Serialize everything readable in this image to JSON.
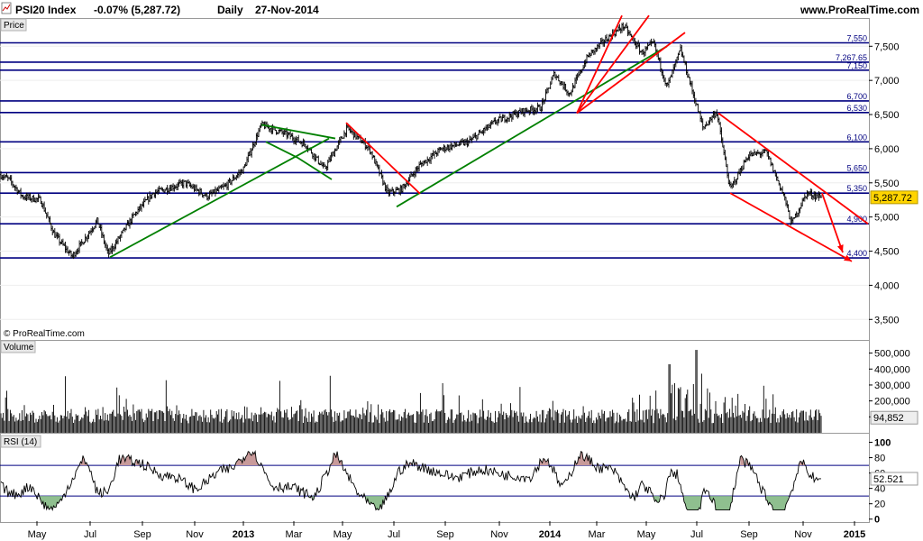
{
  "header": {
    "instrument": "PSI20 Index",
    "change": "-0.07% (5,287.72)",
    "period": "Daily",
    "date": "27-Nov-2014",
    "site": "www.ProRealTime.com",
    "copyright": "© ProRealTime.com"
  },
  "panels": {
    "price": "Price",
    "volume": "Volume",
    "rsi": "RSI (14)"
  },
  "colors": {
    "levels": "#000080",
    "support_trend": "#008000",
    "resistance_trend": "#ff0000",
    "rsi_overbought_fill": "#c89a9a",
    "rsi_oversold_fill": "#8fbf8f",
    "last_price_tag": "#ffd400"
  },
  "chart_data": [
    {
      "type": "line",
      "panel": "price",
      "ylim": [
        3200,
        7900
      ],
      "yticks": [
        "3,500",
        "4,000",
        "4,500",
        "5,000",
        "5,500",
        "6,000",
        "6,500",
        "7,000",
        "7,500"
      ],
      "ytick_values": [
        3500,
        4000,
        4500,
        5000,
        5500,
        6000,
        6500,
        7000,
        7500
      ],
      "last_value_label": "5,287.72",
      "last_value": 5287.72,
      "x_labels": [
        "May",
        "Jul",
        "Sep",
        "Nov",
        "2013",
        "Mar",
        "May",
        "Jul",
        "Sep",
        "Nov",
        "2014",
        "Mar",
        "May",
        "Jul",
        "Sep",
        "Nov",
        "2015"
      ],
      "x_major": [
        "2013",
        "2014",
        "2015"
      ],
      "levels": [
        {
          "value": 7550,
          "label": "7,550"
        },
        {
          "value": 7267.65,
          "label": "7,267.65"
        },
        {
          "value": 7150,
          "label": "7,150"
        },
        {
          "value": 6700,
          "label": "6,700"
        },
        {
          "value": 6530,
          "label": "6,530"
        },
        {
          "value": 6100,
          "label": "6,100"
        },
        {
          "value": 5650,
          "label": "5,650"
        },
        {
          "value": 5350,
          "label": "5,350"
        },
        {
          "value": 4900,
          "label": "4,900"
        },
        {
          "value": 4400,
          "label": "4,400"
        }
      ],
      "anchors": [
        [
          0,
          5620
        ],
        [
          10,
          5550
        ],
        [
          25,
          5300
        ],
        [
          45,
          5250
        ],
        [
          60,
          4750
        ],
        [
          80,
          4420
        ],
        [
          95,
          4700
        ],
        [
          108,
          4950
        ],
        [
          120,
          4450
        ],
        [
          150,
          5050
        ],
        [
          170,
          5350
        ],
        [
          205,
          5500
        ],
        [
          230,
          5300
        ],
        [
          250,
          5450
        ],
        [
          270,
          5700
        ],
        [
          290,
          6350
        ],
        [
          320,
          6200
        ],
        [
          340,
          6050
        ],
        [
          360,
          5700
        ],
        [
          385,
          6300
        ],
        [
          410,
          6000
        ],
        [
          430,
          5350
        ],
        [
          445,
          5400
        ],
        [
          465,
          5750
        ],
        [
          490,
          6000
        ],
        [
          520,
          6100
        ],
        [
          550,
          6400
        ],
        [
          580,
          6550
        ],
        [
          600,
          6600
        ],
        [
          615,
          7100
        ],
        [
          632,
          6800
        ],
        [
          652,
          7350
        ],
        [
          672,
          7600
        ],
        [
          692,
          7800
        ],
        [
          712,
          7400
        ],
        [
          725,
          7550
        ],
        [
          740,
          6900
        ],
        [
          755,
          7450
        ],
        [
          780,
          6300
        ],
        [
          795,
          6550
        ],
        [
          810,
          5400
        ],
        [
          830,
          5900
        ],
        [
          850,
          5950
        ],
        [
          870,
          5300
        ],
        [
          878,
          4900
        ],
        [
          895,
          5350
        ],
        [
          912,
          5287.72
        ]
      ],
      "trendlines": [
        {
          "color": "support",
          "points": [
            [
              122,
              4410
            ],
            [
              365,
              6150
            ]
          ]
        },
        {
          "color": "support",
          "points": [
            [
              440,
              5150
            ],
            [
              740,
              7500
            ]
          ]
        },
        {
          "color": "support",
          "points": [
            [
              290,
              6350
            ],
            [
              372,
              6150
            ]
          ]
        },
        {
          "color": "support",
          "points": [
            [
              295,
              6100
            ],
            [
              330,
              5870
            ],
            [
              368,
              5550
            ]
          ]
        },
        {
          "color": "resistance",
          "points": [
            [
              384,
              6380
            ],
            [
              466,
              5340
            ]
          ]
        },
        {
          "color": "resistance",
          "points": [
            [
              640,
              6520
            ],
            [
              690,
              7950
            ]
          ]
        },
        {
          "color": "resistance",
          "points": [
            [
              640,
              6520
            ],
            [
              720,
              7950
            ]
          ]
        },
        {
          "color": "resistance",
          "points": [
            [
              640,
              6520
            ],
            [
              760,
              7700
            ]
          ]
        },
        {
          "color": "resistance",
          "points": [
            [
              797,
              6520
            ],
            [
              963,
              4900
            ]
          ]
        },
        {
          "color": "resistance",
          "points": [
            [
              810,
              5350
            ],
            [
              945,
              4350
            ]
          ]
        },
        {
          "color": "resistance",
          "points": [
            [
              912,
              5350
            ],
            [
              935,
              4480
            ]
          ]
        }
      ]
    },
    {
      "type": "bar",
      "panel": "volume",
      "ylim": [
        0,
        560000
      ],
      "yticks": [
        "100,000",
        "200,000",
        "300,000",
        "400,000",
        "500,000"
      ],
      "ytick_values": [
        100000,
        200000,
        300000,
        400000,
        500000
      ],
      "last_value_label": "94,852",
      "last_value": 94852
    },
    {
      "type": "line",
      "panel": "rsi",
      "ylim": [
        -5,
        110
      ],
      "yticks": [
        "0",
        "20",
        "40",
        "60",
        "80",
        "100"
      ],
      "ytick_values": [
        0,
        20,
        40,
        60,
        80,
        100
      ],
      "overbought": 70,
      "oversold": 30,
      "last_value_label": "52.521",
      "last_value": 52.521
    }
  ]
}
